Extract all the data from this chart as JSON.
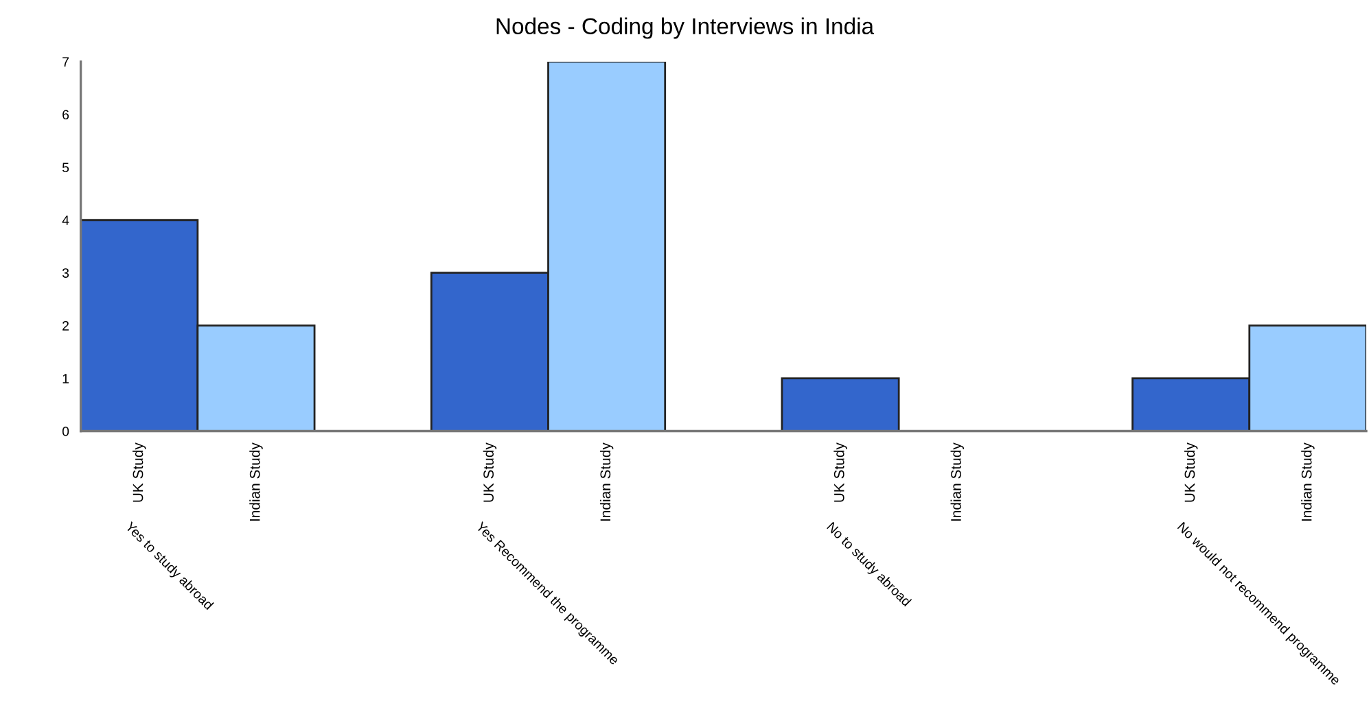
{
  "chart_data": {
    "type": "bar",
    "title": "Nodes - Coding by Interviews in India",
    "categories": [
      "Yes to study abroad",
      "Yes Recommend the programme",
      "No to study abroad",
      "No would not recommend programme"
    ],
    "series": [
      {
        "name": "UK Study",
        "color": "#3366cc",
        "values": [
          4,
          3,
          1,
          1
        ]
      },
      {
        "name": "Indian Study",
        "color": "#99ccff",
        "values": [
          2,
          7,
          0,
          2
        ]
      }
    ],
    "ylim": [
      0,
      7
    ],
    "yticks": [
      0,
      1,
      2,
      3,
      4,
      5,
      6,
      7
    ],
    "grid": false,
    "legend": false
  }
}
